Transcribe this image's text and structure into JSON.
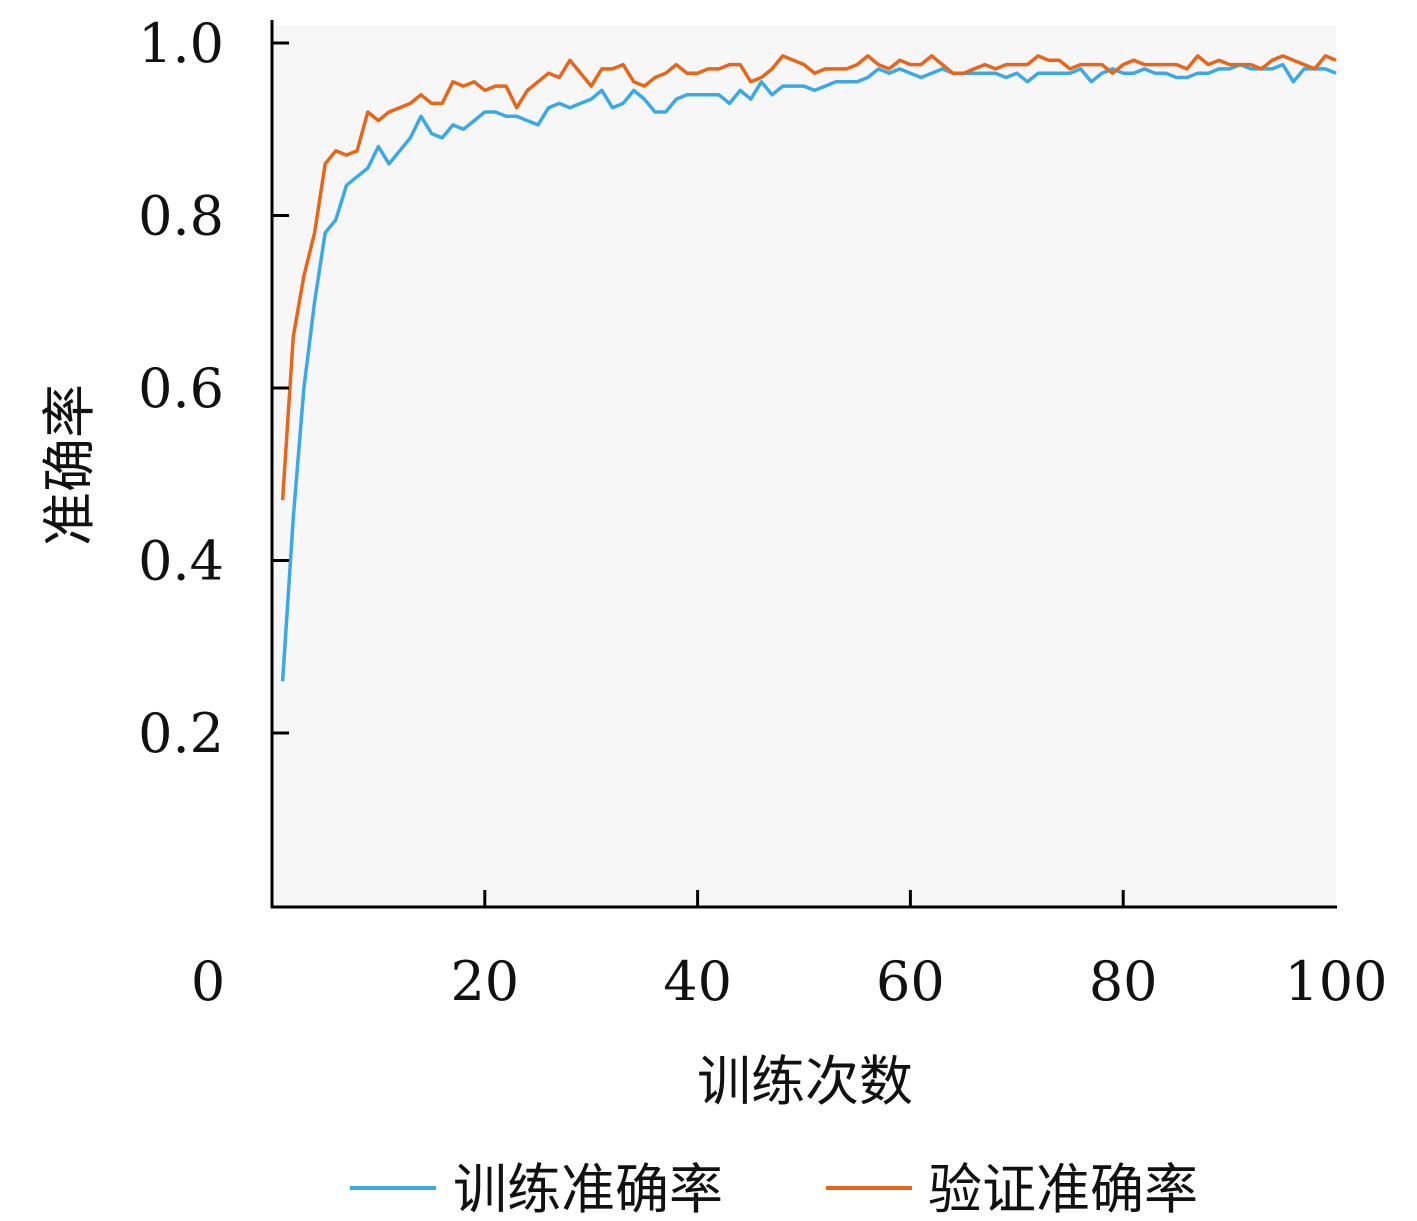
{
  "chart_data": {
    "type": "line",
    "xlabel": "训练次数",
    "ylabel": "准确率",
    "xlim": [
      0,
      100
    ],
    "ylim": [
      0,
      1.0
    ],
    "x_ticks": [
      "0",
      "20",
      "40",
      "60",
      "80",
      "100"
    ],
    "y_ticks": [
      "0.2",
      "0.4",
      "0.6",
      "0.8",
      "1.0"
    ],
    "grid": false,
    "legend_position": "bottom",
    "series": [
      {
        "name": "训练准确率",
        "color": "#3ba9e6",
        "values": [
          0.26,
          0.45,
          0.6,
          0.7,
          0.78,
          0.795,
          0.835,
          0.845,
          0.855,
          0.88,
          0.86,
          0.875,
          0.89,
          0.915,
          0.895,
          0.89,
          0.905,
          0.9,
          0.91,
          0.92,
          0.92,
          0.915,
          0.915,
          0.91,
          0.905,
          0.925,
          0.93,
          0.925,
          0.93,
          0.935,
          0.945,
          0.925,
          0.93,
          0.945,
          0.935,
          0.92,
          0.92,
          0.935,
          0.94,
          0.94,
          0.94,
          0.94,
          0.93,
          0.945,
          0.935,
          0.955,
          0.94,
          0.95,
          0.95,
          0.95,
          0.945,
          0.95,
          0.955,
          0.955,
          0.955,
          0.96,
          0.97,
          0.965,
          0.97,
          0.965,
          0.96,
          0.965,
          0.97,
          0.965,
          0.965,
          0.965,
          0.965,
          0.965,
          0.96,
          0.965,
          0.955,
          0.965,
          0.965,
          0.965,
          0.965,
          0.97,
          0.955,
          0.965,
          0.97,
          0.965,
          0.965,
          0.97,
          0.965,
          0.965,
          0.96,
          0.96,
          0.965,
          0.965,
          0.97,
          0.97,
          0.975,
          0.97,
          0.97,
          0.97,
          0.975,
          0.955,
          0.97,
          0.97,
          0.97,
          0.965
        ]
      },
      {
        "name": "验证准确率",
        "color": "#e8661a",
        "values": [
          0.47,
          0.66,
          0.73,
          0.78,
          0.86,
          0.875,
          0.87,
          0.875,
          0.92,
          0.91,
          0.92,
          0.925,
          0.93,
          0.94,
          0.93,
          0.93,
          0.955,
          0.95,
          0.955,
          0.945,
          0.95,
          0.95,
          0.925,
          0.945,
          0.955,
          0.965,
          0.96,
          0.98,
          0.965,
          0.95,
          0.97,
          0.97,
          0.975,
          0.955,
          0.95,
          0.96,
          0.965,
          0.975,
          0.965,
          0.965,
          0.97,
          0.97,
          0.975,
          0.975,
          0.955,
          0.96,
          0.97,
          0.985,
          0.98,
          0.975,
          0.965,
          0.97,
          0.97,
          0.97,
          0.975,
          0.985,
          0.975,
          0.97,
          0.98,
          0.975,
          0.975,
          0.985,
          0.975,
          0.965,
          0.965,
          0.97,
          0.975,
          0.97,
          0.975,
          0.975,
          0.975,
          0.985,
          0.98,
          0.98,
          0.97,
          0.975,
          0.975,
          0.975,
          0.965,
          0.975,
          0.98,
          0.975,
          0.975,
          0.975,
          0.975,
          0.97,
          0.985,
          0.975,
          0.98,
          0.975,
          0.975,
          0.975,
          0.97,
          0.98,
          0.985,
          0.98,
          0.975,
          0.97,
          0.985,
          0.98
        ]
      }
    ]
  }
}
